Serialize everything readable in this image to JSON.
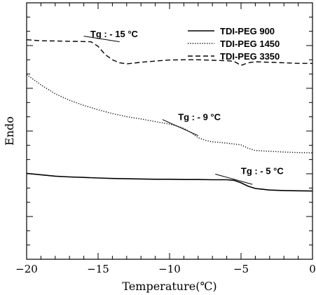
{
  "chart_data": {
    "type": "line",
    "xlabel": "Temperature(℃)",
    "ylabel": "Endo",
    "xlim": [
      -20,
      0
    ],
    "ylim": [
      0,
      100
    ],
    "grid": false,
    "legend_position": "top-right",
    "x_ticks": [
      -20,
      -15,
      -10,
      -5,
      0
    ],
    "x_tick_labels": [
      "−20",
      "−15",
      "−10",
      "−5",
      "0"
    ],
    "series": [
      {
        "name": "TDI-PEG 900",
        "style": "solid",
        "x": [
          -20,
          -18,
          -17,
          -16,
          -15,
          -14,
          -13,
          -12,
          -11,
          -10,
          -9,
          -8,
          -7,
          -6,
          -5.5,
          -5,
          -4.5,
          -4,
          -3.5,
          -3,
          -2,
          -1,
          0
        ],
        "y": [
          33.5,
          32.4,
          32.1,
          31.9,
          31.7,
          31.5,
          31.4,
          31.3,
          31.2,
          31.2,
          31.1,
          31.1,
          31.0,
          31.0,
          30.8,
          29.8,
          28.5,
          27.6,
          27.3,
          27.0,
          26.8,
          26.7,
          26.6
        ]
      },
      {
        "name": "TDI-PEG 1450",
        "style": "dotted",
        "x": [
          -20,
          -19,
          -18,
          -17,
          -16,
          -15,
          -14,
          -13,
          -12,
          -11,
          -10,
          -9.5,
          -9,
          -8.5,
          -8,
          -7.5,
          -7,
          -6,
          -5,
          -4.5,
          -4,
          -3,
          -2,
          -1,
          0
        ],
        "y": [
          72.0,
          68.0,
          64.5,
          62.0,
          60.0,
          58.3,
          56.8,
          55.6,
          54.7,
          53.7,
          52.7,
          52.0,
          51.0,
          49.4,
          47.4,
          46.4,
          45.8,
          45.3,
          44.6,
          43.3,
          42.4,
          42.1,
          41.8,
          41.6,
          41.5
        ]
      },
      {
        "name": "TDI-PEG 3350",
        "style": "dashed",
        "x": [
          -20,
          -19,
          -18,
          -17,
          -16,
          -15.5,
          -15,
          -14.5,
          -14,
          -13.5,
          -13,
          -12,
          -11,
          -10,
          -9,
          -8,
          -7,
          -6,
          -5.5,
          -5,
          -4.5,
          -4,
          -3,
          -2,
          -1,
          0
        ],
        "y": [
          85.6,
          85.2,
          85.1,
          85.0,
          84.9,
          84.8,
          83.0,
          79.8,
          77.8,
          76.6,
          76.2,
          76.8,
          77.3,
          77.7,
          77.8,
          77.8,
          77.6,
          77.4,
          77.2,
          75.6,
          76.6,
          77.0,
          76.8,
          76.6,
          76.4,
          76.4
        ]
      }
    ],
    "annotations": [
      {
        "text": "Tg : - 15 °C",
        "x": -15.3,
        "y": 85.5
      },
      {
        "text": "Tg : - 9 °C",
        "x": -9.5,
        "y": 52.3
      },
      {
        "text": "Tg : - 5 °C",
        "x": -5.2,
        "y": 31.0
      }
    ],
    "tangent_lines": [
      {
        "x1": -16.0,
        "y1": 87.0,
        "x2": -13.5,
        "y2": 84.8
      },
      {
        "x1": -10.5,
        "y1": 54.5,
        "x2": -8.0,
        "y2": 48.2
      },
      {
        "x1": -6.8,
        "y1": 33.2,
        "x2": -4.2,
        "y2": 29.2
      }
    ]
  }
}
